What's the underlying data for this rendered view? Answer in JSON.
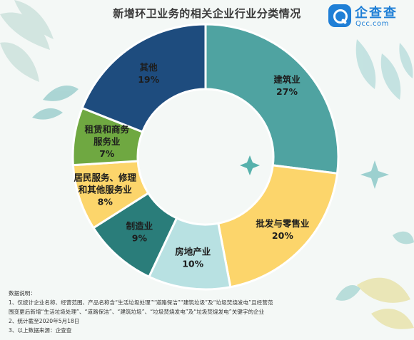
{
  "title": "新增环卫业务的相关企业行业分类情况",
  "logo": {
    "cn": "企查查",
    "en": "Qcc.com",
    "color": "#1f7fd6"
  },
  "chart_data": {
    "type": "pie",
    "style": "donut",
    "title": "新增环卫业务的相关企业行业分类情况",
    "slices": [
      {
        "label": [
          "建筑业"
        ],
        "value": 27,
        "value_label": "27%",
        "color": "#4fa3a1"
      },
      {
        "label": [
          "批发与零售业"
        ],
        "value": 20,
        "value_label": "20%",
        "color": "#fcd56b"
      },
      {
        "label": [
          "房地产业"
        ],
        "value": 10,
        "value_label": "10%",
        "color": "#b8e1e2"
      },
      {
        "label": [
          "制造业"
        ],
        "value": 9,
        "value_label": "9%",
        "color": "#2a7d7a"
      },
      {
        "label": [
          "居民服务、修理",
          "和其他服务业"
        ],
        "value": 8,
        "value_label": "8%",
        "color": "#fcd56b"
      },
      {
        "label": [
          "租赁和商务",
          "服务业"
        ],
        "value": 7,
        "value_label": "7%",
        "color": "#6fa841"
      },
      {
        "label": [
          "其他"
        ],
        "value": 19,
        "value_label": "19%",
        "color": "#1e4c7e"
      }
    ]
  },
  "notes": [
    "数据说明：",
    "1、仅统计企业名称、经营范围、产品名称含“生活垃圾处理”“道路保洁”“建筑垃圾”及“垃圾焚烧发电”且经营范",
    "围变更后新增“生活垃圾处理”、“道路保洁”、“建筑垃圾”、“垃圾焚烧发电”及“垃圾焚烧发电”关键字的企业",
    "2、统计截至2020年5月18日",
    "3、以上数据来源：企查查"
  ]
}
